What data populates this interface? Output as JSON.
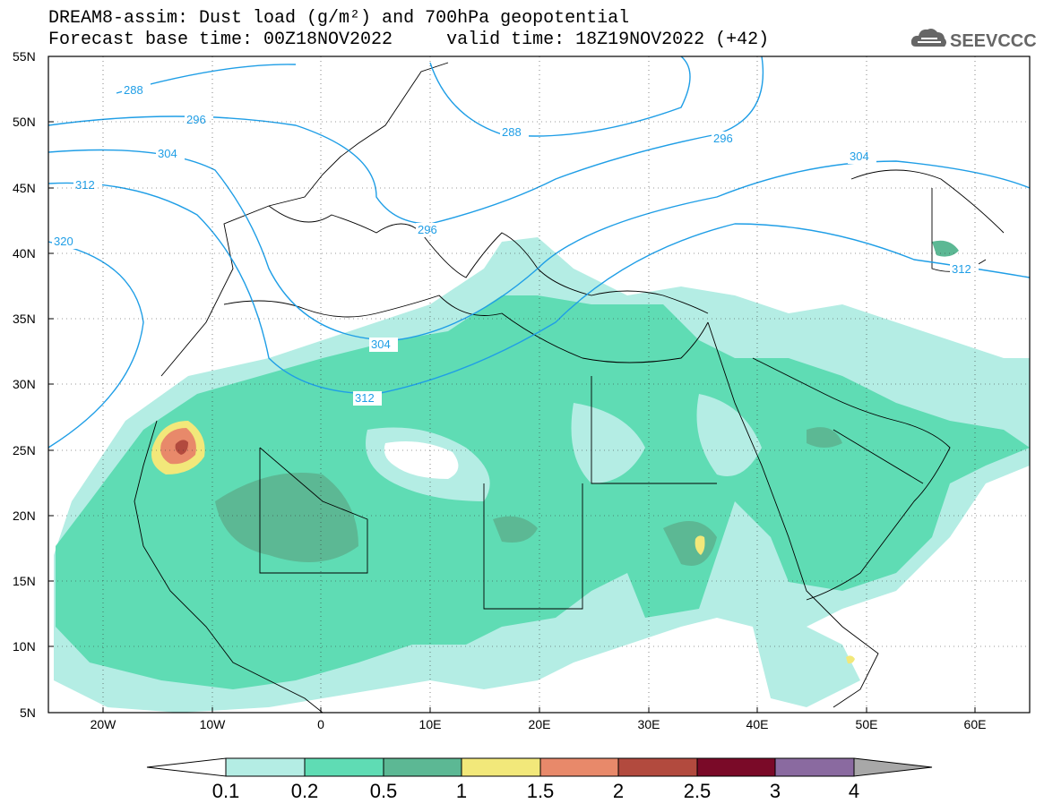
{
  "title": {
    "line1": "DREAM8-assim: Dust load (g/m²) and 700hPa geopotential",
    "line2_base": "Forecast base time: 00Z18NOV2022",
    "line2_valid": "valid time: 18Z19NOV2022 (+42)"
  },
  "logo": {
    "text": "SEEVCCC",
    "icon": "cloud-icon",
    "color": "#666666"
  },
  "axes": {
    "lat_labels": [
      "55N",
      "50N",
      "45N",
      "40N",
      "35N",
      "30N",
      "25N",
      "20N",
      "15N",
      "10N",
      "5N"
    ],
    "lon_labels": [
      "20W",
      "10W",
      "0",
      "10E",
      "20E",
      "30E",
      "40E",
      "50E",
      "60E"
    ]
  },
  "contours": {
    "color": "#1f9ee6",
    "labels": [
      "288",
      "296",
      "304",
      "312",
      "320",
      "288",
      "296",
      "296",
      "304",
      "312",
      "304",
      "312"
    ]
  },
  "colorbar": {
    "levels": [
      "0.1",
      "0.2",
      "0.5",
      "1",
      "1.5",
      "2",
      "2.5",
      "3",
      "4"
    ],
    "colors": [
      "#ffffff",
      "#b4ede4",
      "#5fdcb4",
      "#5cb894",
      "#f2e87a",
      "#e8896a",
      "#b24a3e",
      "#7a0a28",
      "#8a6aa0",
      "#a8a8a8"
    ]
  }
}
